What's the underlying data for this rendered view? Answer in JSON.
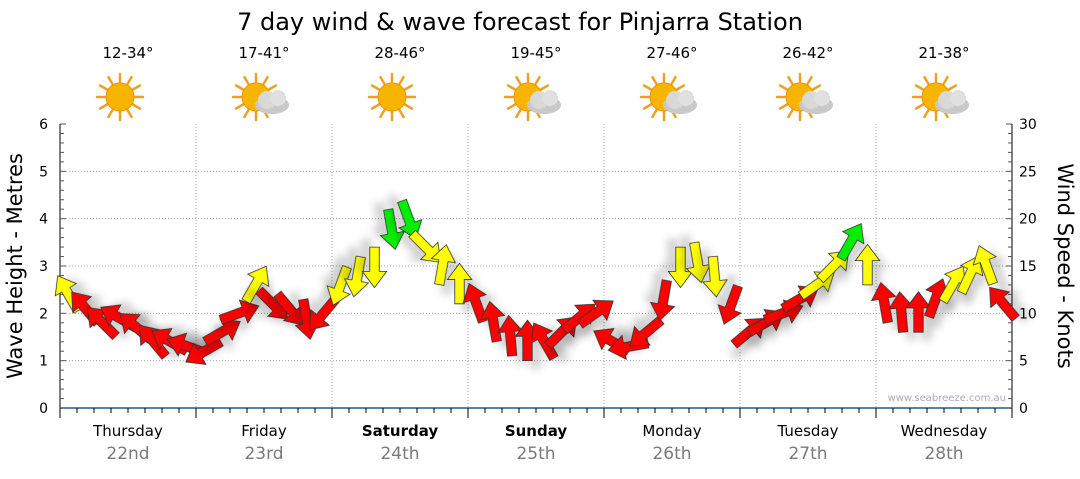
{
  "chart_data": {
    "type": "scatter",
    "title": "7 day wind & wave forecast for Pinjarra Station",
    "ylabel_left": "Wave Height - Metres",
    "ylabel_right": "Wind Speed - Knots",
    "ylim_left": [
      0,
      6
    ],
    "ylim_right": [
      0,
      30
    ],
    "yticks_left": [
      "0",
      "1",
      "2",
      "3",
      "4",
      "5",
      "6"
    ],
    "yticks_right": [
      "0",
      "5",
      "10",
      "15",
      "20",
      "25",
      "30"
    ],
    "grid": true,
    "watermark": "www.seabreeze.com.au",
    "days": [
      {
        "name": "Thursday",
        "date": "22nd",
        "temp": "12-34°",
        "icon": "sunny",
        "bold": false
      },
      {
        "name": "Friday",
        "date": "23rd",
        "temp": "17-41°",
        "icon": "partly-cloudy",
        "bold": false
      },
      {
        "name": "Saturday",
        "date": "24th",
        "temp": "28-46°",
        "icon": "sunny",
        "bold": true
      },
      {
        "name": "Sunday",
        "date": "25th",
        "temp": "19-45°",
        "icon": "partly-cloudy",
        "bold": true
      },
      {
        "name": "Monday",
        "date": "26th",
        "temp": "27-46°",
        "icon": "partly-cloudy",
        "bold": false
      },
      {
        "name": "Tuesday",
        "date": "27th",
        "temp": "26-42°",
        "icon": "partly-cloudy",
        "bold": false
      },
      {
        "name": "Wednesday",
        "date": "28th",
        "temp": "21-38°",
        "icon": "partly-cloudy",
        "bold": false
      }
    ],
    "wind_interval_hours": 3,
    "wind_speed_knots": [
      12,
      10.5,
      9,
      9.5,
      8.5,
      7,
      7,
      6.5,
      6,
      8,
      10,
      13,
      11,
      10.5,
      9.5,
      10,
      13,
      14,
      15,
      19,
      20,
      17,
      15,
      13,
      11,
      9,
      7.5,
      7,
      7,
      8,
      9.5,
      10,
      7,
      6.5,
      8,
      11.5,
      15,
      15.5,
      14,
      11,
      8,
      9,
      10,
      11.5,
      13,
      15,
      17.5,
      15,
      11,
      10,
      10,
      11.5,
      13,
      14,
      15,
      11
    ],
    "wind_arrow_direction_deg": [
      330,
      320,
      315,
      300,
      310,
      320,
      300,
      290,
      240,
      60,
      70,
      30,
      135,
      140,
      170,
      220,
      200,
      190,
      180,
      170,
      160,
      135,
      10,
      0,
      340,
      350,
      355,
      0,
      330,
      45,
      50,
      55,
      300,
      260,
      230,
      190,
      180,
      170,
      175,
      200,
      50,
      60,
      70,
      60,
      55,
      45,
      30,
      0,
      350,
      355,
      0,
      20,
      30,
      25,
      340,
      320
    ],
    "color_bands": [
      {
        "max_knots": 11.5,
        "color": "#ff0000"
      },
      {
        "max_knots": 17.4,
        "color": "#ffff00"
      },
      {
        "max_knots": 99,
        "color": "#00ee00"
      }
    ]
  }
}
